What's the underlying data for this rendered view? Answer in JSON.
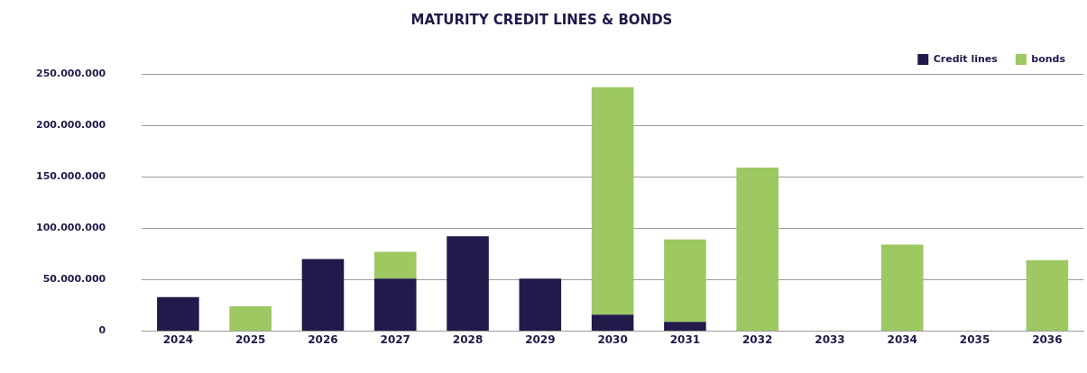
{
  "chart_data": {
    "type": "bar",
    "title": "MATURITY CREDIT LINES & BONDS",
    "categories": [
      "2024",
      "2025",
      "2026",
      "2027",
      "2028",
      "2029",
      "2030",
      "2031",
      "2032",
      "2033",
      "2034",
      "2035",
      "2036"
    ],
    "stacked": true,
    "series": [
      {
        "name": "Credit lines",
        "color": "#211a4a",
        "values": [
          33000000,
          null,
          70000000,
          51000000,
          92000000,
          51000000,
          16000000,
          9000000,
          null,
          null,
          null,
          null,
          null
        ]
      },
      {
        "name": "bonds",
        "color": "#9dc862",
        "values": [
          null,
          24000000,
          null,
          26000000,
          null,
          null,
          221000000,
          80000000,
          159000000,
          null,
          84000000,
          null,
          69000000
        ]
      }
    ],
    "ylim": [
      0,
      250000000
    ],
    "yticks": [
      {
        "value": 0,
        "label": "0"
      },
      {
        "value": 50000000,
        "label": "50.000.000"
      },
      {
        "value": 100000000,
        "label": "100.000.000"
      },
      {
        "value": 150000000,
        "label": "150.000.000"
      },
      {
        "value": 200000000,
        "label": "200.000.000"
      },
      {
        "value": 250000000,
        "label": "250.000.000"
      }
    ],
    "grid": "y",
    "legend": "top right"
  }
}
